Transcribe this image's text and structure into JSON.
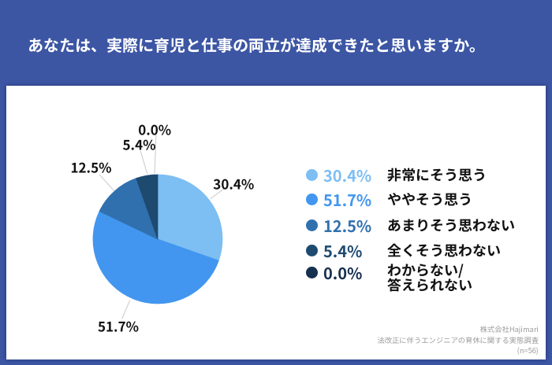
{
  "header": {
    "title": "あなたは、実際に育児と仕事の両立が達成できたと思いますか。"
  },
  "chart_data": {
    "type": "pie",
    "title": "あなたは、実際に育児と仕事の両立が達成できたと思いますか。",
    "categories": [
      "非常にそう思う",
      "ややそう思う",
      "あまりそう思わない",
      "全くそう思わない",
      "わからない/\n答えられない"
    ],
    "values": [
      30.4,
      51.7,
      12.5,
      5.4,
      0.0
    ],
    "unit": "%",
    "slice_labels": [
      "30.4%",
      "51.7%",
      "12.5%",
      "5.4%",
      "0.0%"
    ],
    "colors": [
      "#7dbef3",
      "#4296ef",
      "#3070ae",
      "#1e4a70",
      "#16304f"
    ],
    "start_angle_deg": 0,
    "direction": "clockwise",
    "legend_position": "right"
  },
  "source": {
    "company": "株式会社Hajimari",
    "survey": "法改正に伴うエンジニアの育休に関する実態調査",
    "sample": "(n=56)"
  },
  "colors": {
    "frame_blue": "#3c56a4",
    "card_white": "#ffffff",
    "title_text": "#ffffff",
    "label_text": "#111111",
    "leader_line": "#c9c9c9",
    "source_text": "#9b9b9b"
  }
}
